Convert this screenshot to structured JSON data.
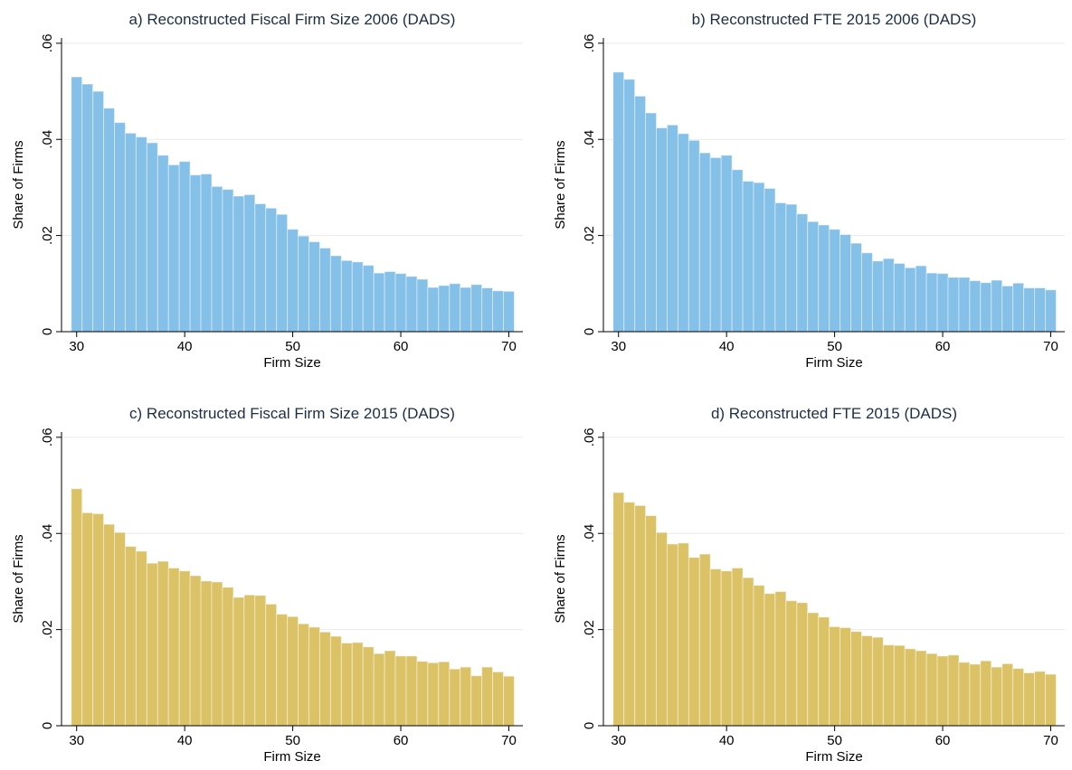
{
  "chart_data": [
    {
      "type": "histogram",
      "title": "a) Reconstructed Fiscal Firm Size 2006 (DADS)",
      "xlabel": "Firm Size",
      "ylabel": "Share of Firms",
      "bins": [
        29.5,
        30.5,
        31.5,
        32.5,
        33.5,
        34.5,
        35.5,
        36.5,
        37.5,
        38.5,
        39.5,
        40.5,
        41.5,
        42.5,
        43.5,
        44.5,
        45.5,
        46.5,
        47.5,
        48.5,
        49.5,
        50.5,
        51.5,
        52.5,
        53.5,
        54.5,
        55.5,
        56.5,
        57.5,
        58.5,
        59.5,
        60.5,
        61.5,
        62.5,
        63.5,
        64.5,
        65.5,
        66.5,
        67.5,
        68.5,
        69.5,
        70.5
      ],
      "values": [
        0.053,
        0.0515,
        0.05,
        0.0465,
        0.0435,
        0.0413,
        0.0405,
        0.0393,
        0.0367,
        0.0347,
        0.0354,
        0.0326,
        0.0328,
        0.0302,
        0.0296,
        0.0282,
        0.0285,
        0.0266,
        0.0257,
        0.0244,
        0.0213,
        0.0199,
        0.0187,
        0.0174,
        0.0158,
        0.0148,
        0.0145,
        0.0138,
        0.0122,
        0.0125,
        0.0121,
        0.0115,
        0.0109,
        0.0092,
        0.0096,
        0.01,
        0.0092,
        0.0098,
        0.0091,
        0.0085,
        0.0084
      ],
      "color": "#85c0e9",
      "xlim": [
        28.6,
        71.3
      ],
      "xticks": [
        30,
        40,
        50,
        60,
        70
      ],
      "ylim": [
        0,
        0.0611
      ],
      "yticks": [
        0,
        {
          "value": 0.02,
          "label": ".02"
        },
        {
          "value": 0.04,
          "label": ".04"
        },
        {
          "value": 0.06,
          "label": ".06"
        }
      ],
      "grid": true
    },
    {
      "type": "histogram",
      "title": "b) Reconstructed FTE 2015 2006 (DADS)",
      "xlabel": "Firm Size",
      "ylabel": "Share of Firms",
      "bins": [
        29.5,
        30.5,
        31.5,
        32.5,
        33.5,
        34.5,
        35.5,
        36.5,
        37.5,
        38.5,
        39.5,
        40.5,
        41.5,
        42.5,
        43.5,
        44.5,
        45.5,
        46.5,
        47.5,
        48.5,
        49.5,
        50.5,
        51.5,
        52.5,
        53.5,
        54.5,
        55.5,
        56.5,
        57.5,
        58.5,
        59.5,
        60.5,
        61.5,
        62.5,
        63.5,
        64.5,
        65.5,
        66.5,
        67.5,
        68.5,
        69.5,
        70.5
      ],
      "values": [
        0.054,
        0.0525,
        0.049,
        0.0455,
        0.0424,
        0.043,
        0.0412,
        0.0398,
        0.0372,
        0.0362,
        0.0367,
        0.0337,
        0.0313,
        0.031,
        0.0298,
        0.0268,
        0.0265,
        0.0245,
        0.0229,
        0.0222,
        0.0213,
        0.0202,
        0.0184,
        0.0164,
        0.0147,
        0.0152,
        0.0142,
        0.0133,
        0.0137,
        0.0122,
        0.0121,
        0.0113,
        0.0113,
        0.0106,
        0.0102,
        0.0107,
        0.0095,
        0.0101,
        0.0091,
        0.0091,
        0.0087
      ],
      "color": "#85c0e9",
      "xlim": [
        28.6,
        71.3
      ],
      "xticks": [
        30,
        40,
        50,
        60,
        70
      ],
      "ylim": [
        0,
        0.0611
      ],
      "yticks": [
        0,
        {
          "value": 0.02,
          "label": ".02"
        },
        {
          "value": 0.04,
          "label": ".04"
        },
        {
          "value": 0.06,
          "label": ".06"
        }
      ],
      "grid": true
    },
    {
      "type": "histogram",
      "title": "c) Reconstructed Fiscal Firm Size 2015 (DADS)",
      "xlabel": "Firm Size",
      "ylabel": "Share of Firms",
      "bins": [
        29.5,
        30.5,
        31.5,
        32.5,
        33.5,
        34.5,
        35.5,
        36.5,
        37.5,
        38.5,
        39.5,
        40.5,
        41.5,
        42.5,
        43.5,
        44.5,
        45.5,
        46.5,
        47.5,
        48.5,
        49.5,
        50.5,
        51.5,
        52.5,
        53.5,
        54.5,
        55.5,
        56.5,
        57.5,
        58.5,
        59.5,
        60.5,
        61.5,
        62.5,
        63.5,
        64.5,
        65.5,
        66.5,
        67.5,
        68.5,
        69.5,
        70.5
      ],
      "values": [
        0.0493,
        0.0443,
        0.0441,
        0.0419,
        0.0402,
        0.0373,
        0.0363,
        0.0338,
        0.0342,
        0.0328,
        0.0322,
        0.0312,
        0.0301,
        0.0299,
        0.0288,
        0.0267,
        0.0272,
        0.0271,
        0.0253,
        0.0232,
        0.0227,
        0.0212,
        0.0205,
        0.0195,
        0.0186,
        0.0172,
        0.0173,
        0.0164,
        0.015,
        0.0156,
        0.0145,
        0.0145,
        0.0134,
        0.0131,
        0.0133,
        0.0118,
        0.0122,
        0.0104,
        0.0122,
        0.0112,
        0.0103
      ],
      "color": "#dbc266",
      "xlim": [
        28.6,
        71.3
      ],
      "xticks": [
        30,
        40,
        50,
        60,
        70
      ],
      "ylim": [
        0,
        0.0611
      ],
      "yticks": [
        0,
        {
          "value": 0.02,
          "label": ".02"
        },
        {
          "value": 0.04,
          "label": ".04"
        },
        {
          "value": 0.06,
          "label": ".06"
        }
      ],
      "grid": true
    },
    {
      "type": "histogram",
      "title": "d) Reconstructed FTE 2015 (DADS)",
      "xlabel": "Firm Size",
      "ylabel": "Share of Firms",
      "bins": [
        29.5,
        30.5,
        31.5,
        32.5,
        33.5,
        34.5,
        35.5,
        36.5,
        37.5,
        38.5,
        39.5,
        40.5,
        41.5,
        42.5,
        43.5,
        44.5,
        45.5,
        46.5,
        47.5,
        48.5,
        49.5,
        50.5,
        51.5,
        52.5,
        53.5,
        54.5,
        55.5,
        56.5,
        57.5,
        58.5,
        59.5,
        60.5,
        61.5,
        62.5,
        63.5,
        64.5,
        65.5,
        66.5,
        67.5,
        68.5,
        69.5,
        70.5
      ],
      "values": [
        0.0485,
        0.0465,
        0.0458,
        0.0437,
        0.0402,
        0.0378,
        0.038,
        0.035,
        0.0357,
        0.0326,
        0.0322,
        0.0328,
        0.0308,
        0.0292,
        0.0275,
        0.0279,
        0.026,
        0.0256,
        0.0235,
        0.0226,
        0.0206,
        0.0204,
        0.0196,
        0.0187,
        0.0184,
        0.0168,
        0.0167,
        0.016,
        0.0156,
        0.015,
        0.0145,
        0.0147,
        0.0132,
        0.0128,
        0.0135,
        0.0122,
        0.0129,
        0.0119,
        0.011,
        0.0113,
        0.0107
      ],
      "color": "#dbc266",
      "xlim": [
        28.6,
        71.3
      ],
      "xticks": [
        30,
        40,
        50,
        60,
        70
      ],
      "ylim": [
        0,
        0.0611
      ],
      "yticks": [
        0,
        {
          "value": 0.02,
          "label": ".02"
        },
        {
          "value": 0.04,
          "label": ".04"
        },
        {
          "value": 0.06,
          "label": ".06"
        }
      ],
      "grid": true
    }
  ]
}
